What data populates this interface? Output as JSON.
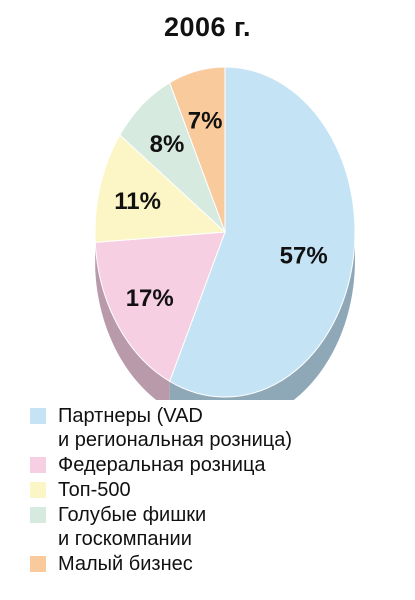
{
  "chart_data": {
    "type": "pie",
    "title": "2006 г.",
    "slices": [
      {
        "label": "Партнеры (VAD\nи региональная розница)",
        "value": 57,
        "value_label": "57%",
        "color": "#c4e3f4",
        "side_color": "#8fa8b8"
      },
      {
        "label": "Федеральная розница",
        "value": 17,
        "value_label": "17%",
        "color": "#f6cfe2",
        "side_color": "#b89aab"
      },
      {
        "label": "Топ-500",
        "value": 11,
        "value_label": "11%",
        "color": "#fcf6c6",
        "side_color": "#c8c39a"
      },
      {
        "label": "Голубые фишки\nи госкомпании",
        "value": 8,
        "value_label": "8%",
        "color": "#d6eae0",
        "side_color": "#a6b8ae"
      },
      {
        "label": "Малый бизнес",
        "value": 7,
        "value_label": "7%",
        "color": "#f8ca9c",
        "side_color": "#c49c74"
      }
    ]
  }
}
